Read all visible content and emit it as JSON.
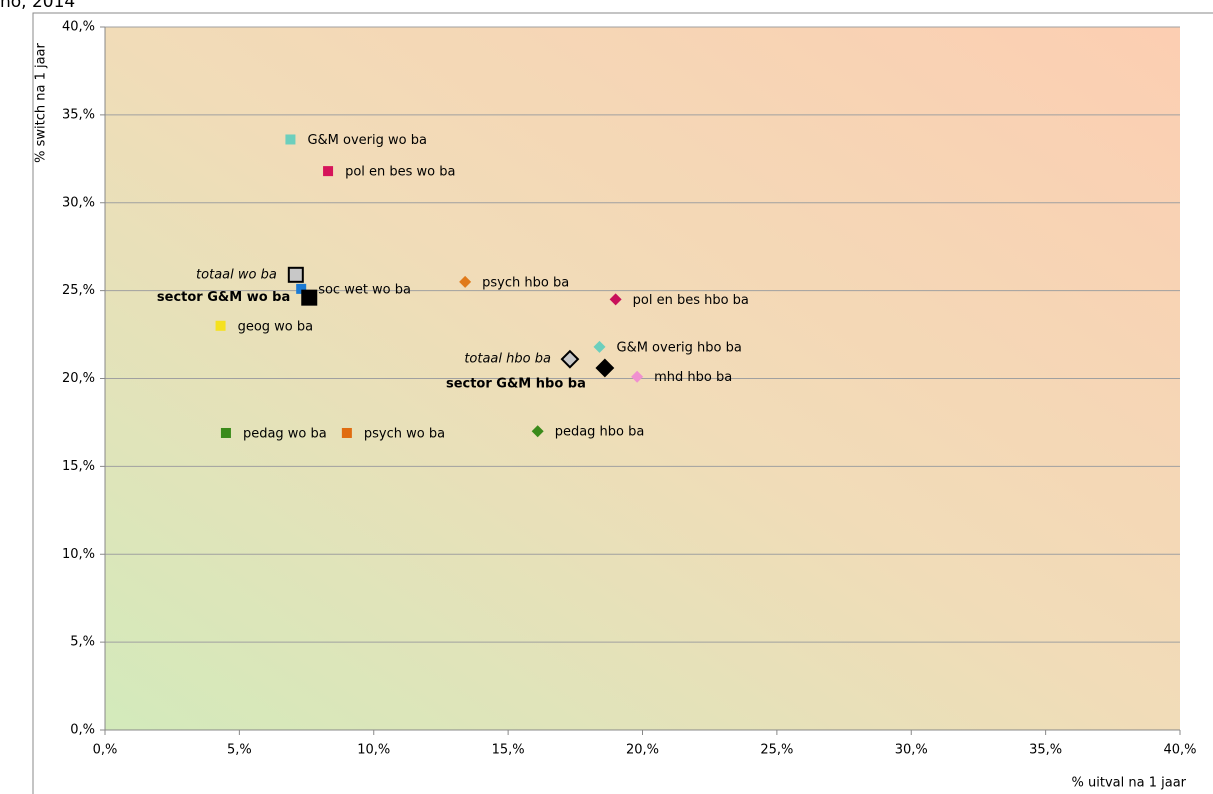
{
  "chart_data": {
    "type": "scatter",
    "title": "no, 2014",
    "x_label": "% uitval na 1 jaar",
    "y_label": "% switch na 1 jaar",
    "xlim": [
      0,
      40
    ],
    "ylim": [
      0,
      40
    ],
    "xticks": [
      {
        "value": 0,
        "label": "0,%"
      },
      {
        "value": 5,
        "label": "5,%"
      },
      {
        "value": 10,
        "label": "10,%"
      },
      {
        "value": 15,
        "label": "15,%"
      },
      {
        "value": 20,
        "label": "20,%"
      },
      {
        "value": 25,
        "label": "25,%"
      },
      {
        "value": 30,
        "label": "30,%"
      },
      {
        "value": 35,
        "label": "35,%"
      },
      {
        "value": 40,
        "label": "40,%"
      }
    ],
    "yticks": [
      {
        "value": 0,
        "label": "0,%"
      },
      {
        "value": 5,
        "label": "5,%"
      },
      {
        "value": 10,
        "label": "10,%"
      },
      {
        "value": 15,
        "label": "15,%"
      },
      {
        "value": 20,
        "label": "20,%"
      },
      {
        "value": 25,
        "label": "25,%"
      },
      {
        "value": 30,
        "label": "30,%"
      },
      {
        "value": 35,
        "label": "35,%"
      },
      {
        "value": 40,
        "label": "40,%"
      }
    ],
    "grid": true,
    "series": [
      {
        "name": "G&M overig wo ba",
        "color": "#6ccfbd",
        "marker": "square",
        "x": [
          6.9
        ],
        "values": [
          33.6
        ]
      },
      {
        "name": "pol en bes wo ba",
        "color": "#d6145a",
        "marker": "square",
        "x": [
          8.3
        ],
        "values": [
          31.8
        ]
      },
      {
        "name": "totaal wo ba",
        "color": "#c8c8c8",
        "marker": "square",
        "style": "italic",
        "x": [
          7.1
        ],
        "values": [
          25.9
        ]
      },
      {
        "name": "soc wet wo ba",
        "color": "#1a7ad4",
        "marker": "square",
        "x": [
          7.3
        ],
        "values": [
          25.1
        ]
      },
      {
        "name": "sector G&M wo ba",
        "color": "#000000",
        "marker": "square",
        "style": "bold",
        "x": [
          7.6
        ],
        "values": [
          24.6
        ]
      },
      {
        "name": "geog wo ba",
        "color": "#f5e11e",
        "marker": "square",
        "x": [
          4.3
        ],
        "values": [
          23.0
        ]
      },
      {
        "name": "pedag wo ba",
        "color": "#3a8a1a",
        "marker": "square",
        "x": [
          4.5
        ],
        "values": [
          16.9
        ]
      },
      {
        "name": "psych wo ba",
        "color": "#e06c10",
        "marker": "square",
        "x": [
          9.0
        ],
        "values": [
          16.9
        ]
      },
      {
        "name": "psych hbo ba",
        "color": "#e07a1a",
        "marker": "diamond",
        "x": [
          13.4
        ],
        "values": [
          25.5
        ]
      },
      {
        "name": "pol en bes hbo ba",
        "color": "#c8105a",
        "marker": "diamond",
        "x": [
          19.0
        ],
        "values": [
          24.5
        ]
      },
      {
        "name": "G&M overig hbo ba",
        "color": "#6ccfbd",
        "marker": "diamond",
        "x": [
          18.4
        ],
        "values": [
          21.8
        ]
      },
      {
        "name": "totaal hbo ba",
        "color": "#c8c8c8",
        "marker": "diamond",
        "style": "italic",
        "x": [
          17.3
        ],
        "values": [
          21.1
        ]
      },
      {
        "name": "sector G&M hbo ba",
        "color": "#000000",
        "marker": "diamond",
        "style": "bold",
        "x": [
          18.6
        ],
        "values": [
          20.6
        ]
      },
      {
        "name": "mhd hbo ba",
        "color": "#f090d0",
        "marker": "diamond",
        "x": [
          19.8
        ],
        "values": [
          20.1
        ]
      },
      {
        "name": "pedag hbo ba",
        "color": "#3a8a1a",
        "marker": "diamond",
        "x": [
          16.1
        ],
        "values": [
          17.0
        ]
      }
    ]
  }
}
